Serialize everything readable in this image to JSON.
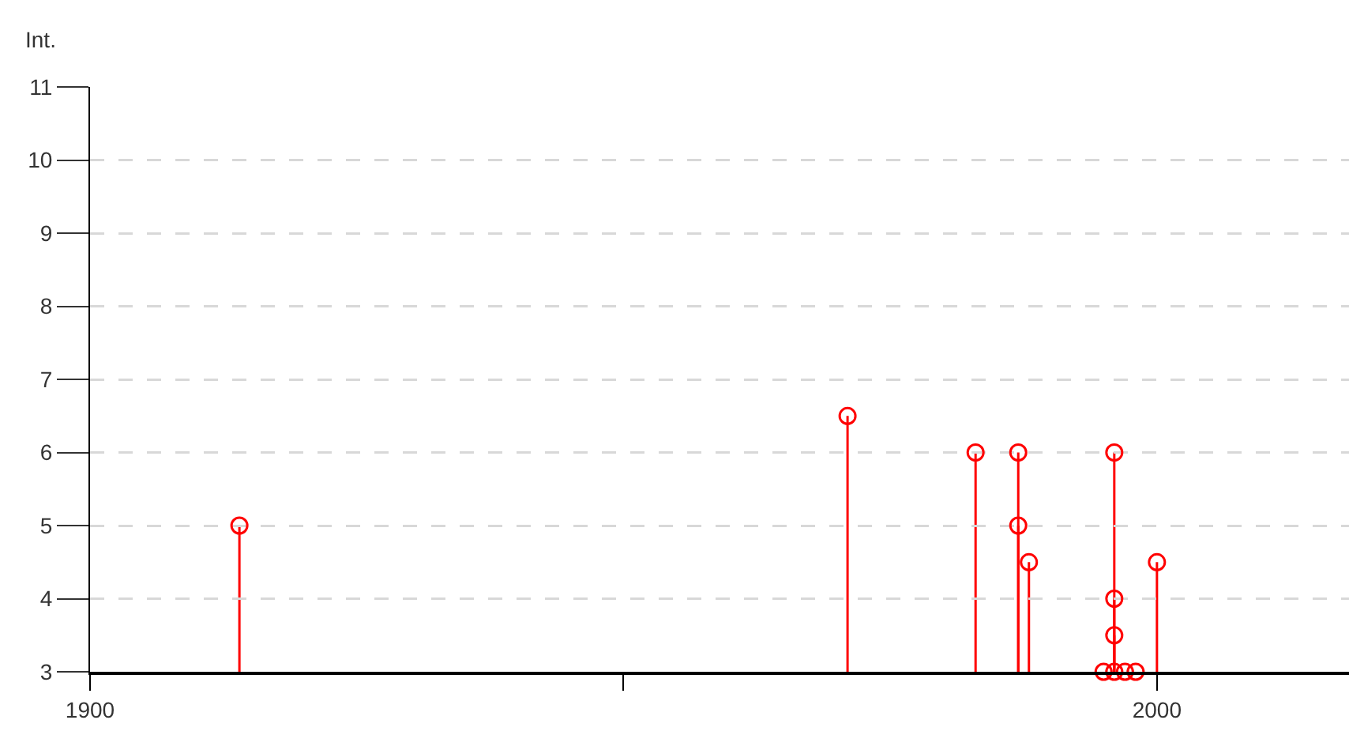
{
  "chart_data": {
    "type": "lollipop",
    "ylabel": "Int.",
    "x": [
      1914,
      1971,
      1983,
      1987,
      1987,
      1988,
      1995,
      1996,
      1996,
      1996,
      1996,
      1997,
      1998,
      2000
    ],
    "values": [
      5,
      6.5,
      6,
      6,
      5,
      4.5,
      3,
      3,
      3.5,
      4,
      6,
      3,
      3,
      4.5
    ],
    "color": "#ff0000",
    "marker": "circle",
    "grid": "y",
    "xlim": [
      1900,
      2018
    ],
    "xticks": [
      1900,
      {
        "value": 1950,
        "label": null
      },
      2000
    ],
    "ylim": [
      3,
      11
    ],
    "yticks": [
      3,
      4,
      5,
      6,
      7,
      8,
      9,
      10,
      11
    ]
  }
}
